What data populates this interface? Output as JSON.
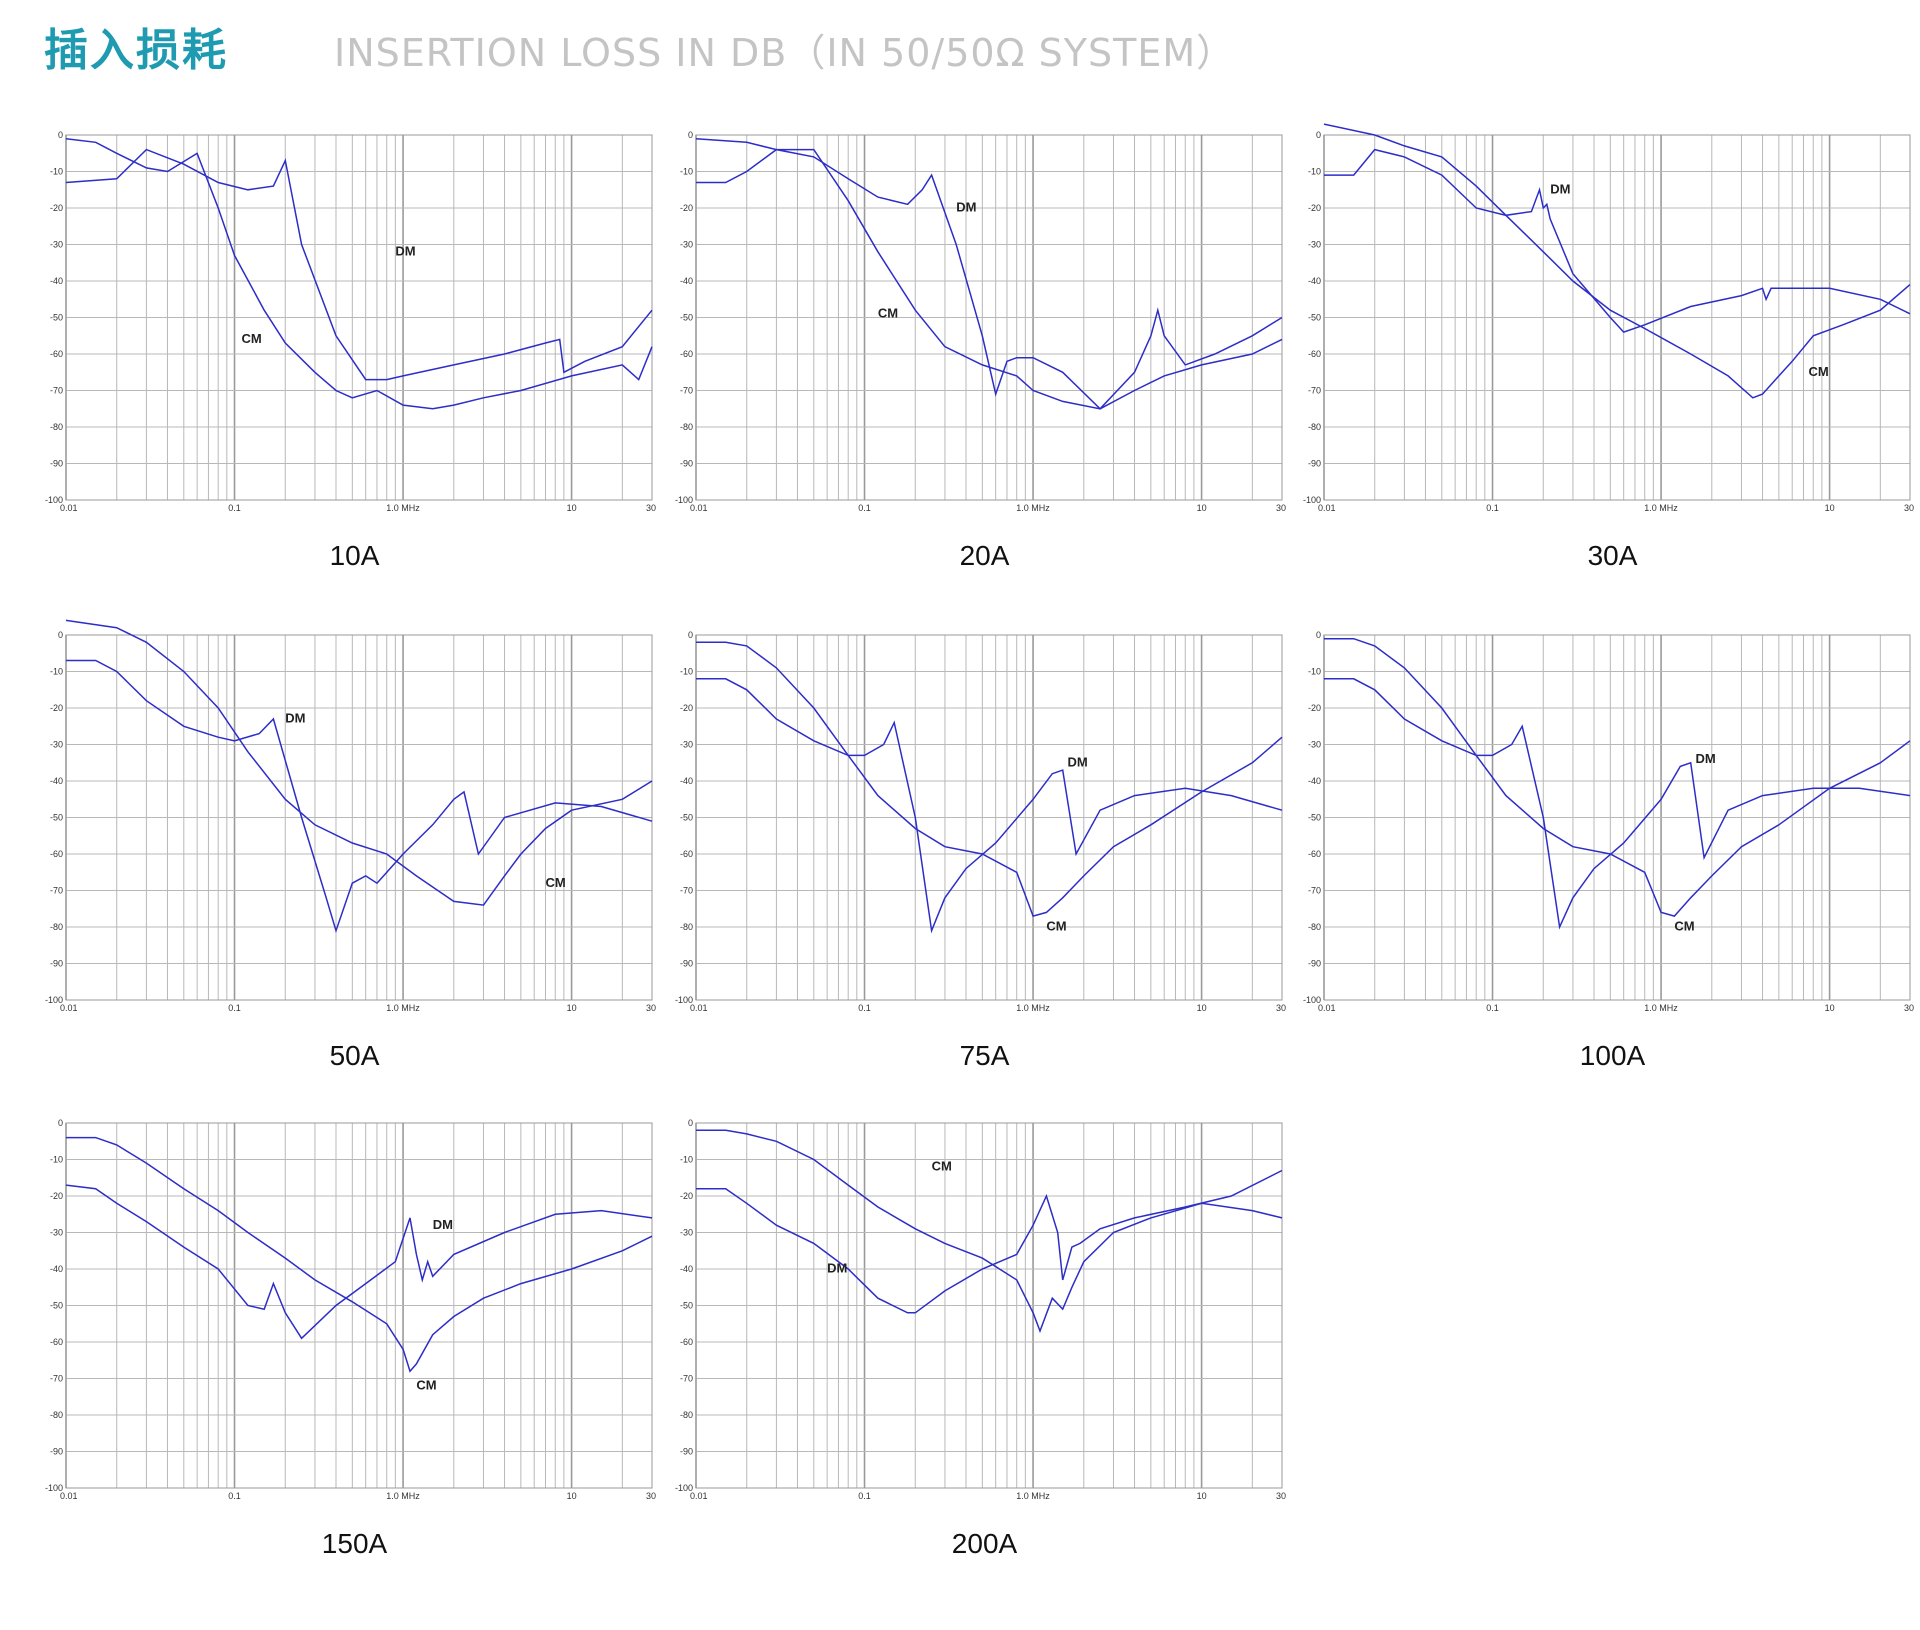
{
  "header": {
    "title_cn": "插入损耗",
    "title_en": "INSERTION LOSS IN DB（IN 50/50Ω SYSTEM）"
  },
  "colors": {
    "title": "#1e9bb0",
    "subtitle": "#c4c4c4",
    "line": "#2d2dc8",
    "grid": "#b8b8b8"
  },
  "chart_data": [
    {
      "type": "line",
      "caption": "10A",
      "xscale": "log",
      "xlim": [
        0.01,
        30
      ],
      "ylim": [
        -100,
        0
      ],
      "x_ticks": [
        "0.01",
        "0.1",
        "1.0 MHz",
        "10",
        "30"
      ],
      "y_ticks": [
        "0",
        "-10",
        "-20",
        "-30",
        "-40",
        "-50",
        "-60",
        "-70",
        "-80",
        "-90",
        "-100"
      ],
      "grid": true,
      "series": [
        {
          "name": "DM",
          "x": [
            0.01,
            0.02,
            0.03,
            0.05,
            0.08,
            0.12,
            0.17,
            0.2,
            0.25,
            0.4,
            0.6,
            0.8,
            1.0,
            2,
            4,
            7,
            8.5,
            9,
            12,
            20,
            30
          ],
          "y": [
            -13,
            -12,
            -4,
            -8,
            -13,
            -15,
            -14,
            -7,
            -30,
            -55,
            -67,
            -67,
            -66,
            -63,
            -60,
            -57,
            -56,
            -65,
            -62,
            -58,
            -48
          ]
        },
        {
          "name": "CM",
          "x": [
            0.01,
            0.015,
            0.02,
            0.03,
            0.04,
            0.06,
            0.08,
            0.1,
            0.15,
            0.2,
            0.3,
            0.4,
            0.5,
            0.7,
            1.0,
            1.5,
            2,
            3,
            5,
            10,
            20,
            25,
            30
          ],
          "y": [
            -1,
            -2,
            -5,
            -9,
            -10,
            -5,
            -20,
            -33,
            -48,
            -57,
            -65,
            -70,
            -72,
            -70,
            -74,
            -75,
            -74,
            -72,
            -70,
            -66,
            -63,
            -67,
            -58
          ]
        }
      ],
      "annotations": [
        {
          "text": "DM",
          "x": 0.9,
          "y": -33
        },
        {
          "text": "CM",
          "x": 0.11,
          "y": -57
        }
      ]
    },
    {
      "type": "line",
      "caption": "20A",
      "xscale": "log",
      "xlim": [
        0.01,
        30
      ],
      "ylim": [
        -100,
        0
      ],
      "x_ticks": [
        "0.01",
        "0.1",
        "1.0 MHz",
        "10",
        "30"
      ],
      "y_ticks": [
        "0",
        "-10",
        "-20",
        "-30",
        "-40",
        "-50",
        "-60",
        "-70",
        "-80",
        "-90",
        "-100"
      ],
      "grid": true,
      "series": [
        {
          "name": "DM",
          "x": [
            0.01,
            0.015,
            0.02,
            0.03,
            0.05,
            0.08,
            0.12,
            0.18,
            0.22,
            0.25,
            0.35,
            0.5,
            0.6,
            0.7,
            0.8,
            1.0,
            1.5,
            2.5,
            4,
            5,
            5.5,
            6,
            8,
            12,
            20,
            30
          ],
          "y": [
            -13,
            -13,
            -10,
            -4,
            -6,
            -12,
            -17,
            -19,
            -15,
            -11,
            -30,
            -55,
            -71,
            -62,
            -61,
            -61,
            -65,
            -75,
            -65,
            -55,
            -48,
            -55,
            -63,
            -60,
            -55,
            -50
          ]
        },
        {
          "name": "CM",
          "x": [
            0.01,
            0.02,
            0.03,
            0.05,
            0.08,
            0.12,
            0.2,
            0.3,
            0.5,
            0.8,
            1.0,
            1.5,
            2.5,
            4,
            6,
            10,
            20,
            30
          ],
          "y": [
            -1,
            -2,
            -4,
            -4,
            -18,
            -32,
            -48,
            -58,
            -63,
            -66,
            -70,
            -73,
            -75,
            -70,
            -66,
            -63,
            -60,
            -56
          ]
        }
      ],
      "annotations": [
        {
          "text": "DM",
          "x": 0.35,
          "y": -21
        },
        {
          "text": "CM",
          "x": 0.12,
          "y": -50
        }
      ]
    },
    {
      "type": "line",
      "caption": "30A",
      "xscale": "log",
      "xlim": [
        0.01,
        30
      ],
      "ylim": [
        -100,
        0
      ],
      "x_ticks": [
        "0.01",
        "0.1",
        "1.0 MHz",
        "10",
        "30"
      ],
      "y_ticks": [
        "0",
        "-10",
        "-20",
        "-30",
        "-40",
        "-50",
        "-60",
        "-70",
        "-80",
        "-90",
        "-100"
      ],
      "grid": true,
      "series": [
        {
          "name": "DM",
          "x": [
            0.01,
            0.015,
            0.02,
            0.03,
            0.05,
            0.08,
            0.12,
            0.17,
            0.19,
            0.2,
            0.21,
            0.22,
            0.3,
            0.5,
            0.6,
            0.8,
            1.5,
            3,
            4,
            4.2,
            4.5,
            6,
            10,
            20,
            30
          ],
          "y": [
            -11,
            -11,
            -4,
            -6,
            -11,
            -20,
            -22,
            -21,
            -15,
            -20,
            -19,
            -23,
            -38,
            -50,
            -54,
            -52,
            -47,
            -44,
            -42,
            -45,
            -42,
            -42,
            -42,
            -45,
            -49
          ]
        },
        {
          "name": "CM",
          "x": [
            0.01,
            0.02,
            0.03,
            0.05,
            0.08,
            0.12,
            0.2,
            0.3,
            0.5,
            0.8,
            1.5,
            2.5,
            3.5,
            4,
            5,
            6,
            8,
            12,
            20,
            30
          ],
          "y": [
            3,
            0,
            -3,
            -6,
            -14,
            -22,
            -32,
            -40,
            -48,
            -53,
            -60,
            -66,
            -72,
            -71,
            -66,
            -62,
            -55,
            -52,
            -48,
            -41
          ]
        }
      ],
      "annotations": [
        {
          "text": "DM",
          "x": 0.22,
          "y": -16
        },
        {
          "text": "CM",
          "x": 7.5,
          "y": -66
        }
      ]
    },
    {
      "type": "line",
      "caption": "50A",
      "xscale": "log",
      "xlim": [
        0.01,
        30
      ],
      "ylim": [
        -100,
        0
      ],
      "x_ticks": [
        "0.01",
        "0.1",
        "1.0 MHz",
        "10",
        "30"
      ],
      "y_ticks": [
        "0",
        "-10",
        "-20",
        "-30",
        "-40",
        "-50",
        "-60",
        "-70",
        "-80",
        "-90",
        "-100"
      ],
      "grid": true,
      "series": [
        {
          "name": "DM",
          "x": [
            0.01,
            0.015,
            0.02,
            0.03,
            0.05,
            0.08,
            0.1,
            0.14,
            0.17,
            0.25,
            0.35,
            0.4,
            0.5,
            0.6,
            0.7,
            1.0,
            1.5,
            2,
            2.3,
            2.8,
            4,
            8,
            15,
            30
          ],
          "y": [
            -7,
            -7,
            -10,
            -18,
            -25,
            -28,
            -29,
            -27,
            -23,
            -50,
            -72,
            -81,
            -68,
            -66,
            -68,
            -60,
            -52,
            -45,
            -43,
            -60,
            -50,
            -46,
            -47,
            -51
          ]
        },
        {
          "name": "CM",
          "x": [
            0.01,
            0.02,
            0.03,
            0.05,
            0.08,
            0.12,
            0.2,
            0.3,
            0.5,
            0.8,
            1.2,
            2,
            3,
            4,
            5,
            7,
            10,
            20,
            30
          ],
          "y": [
            4,
            2,
            -2,
            -10,
            -20,
            -32,
            -45,
            -52,
            -57,
            -60,
            -66,
            -73,
            -74,
            -66,
            -60,
            -53,
            -48,
            -45,
            -40
          ]
        }
      ],
      "annotations": [
        {
          "text": "DM",
          "x": 0.2,
          "y": -24
        },
        {
          "text": "CM",
          "x": 7,
          "y": -69
        }
      ]
    },
    {
      "type": "line",
      "caption": "75A",
      "xscale": "log",
      "xlim": [
        0.01,
        30
      ],
      "ylim": [
        -100,
        0
      ],
      "x_ticks": [
        "0.01",
        "0.1",
        "1.0 MHz",
        "10",
        "30"
      ],
      "y_ticks": [
        "0",
        "-10",
        "-20",
        "-30",
        "-40",
        "-50",
        "-60",
        "-70",
        "-80",
        "-90",
        "-100"
      ],
      "grid": true,
      "series": [
        {
          "name": "DM",
          "x": [
            0.01,
            0.015,
            0.02,
            0.03,
            0.05,
            0.08,
            0.1,
            0.13,
            0.15,
            0.2,
            0.25,
            0.3,
            0.4,
            0.6,
            1.0,
            1.3,
            1.5,
            1.8,
            2.5,
            4,
            8,
            15,
            30
          ],
          "y": [
            -12,
            -12,
            -15,
            -23,
            -29,
            -33,
            -33,
            -30,
            -24,
            -50,
            -81,
            -72,
            -64,
            -57,
            -45,
            -38,
            -37,
            -60,
            -48,
            -44,
            -42,
            -44,
            -48
          ]
        },
        {
          "name": "CM",
          "x": [
            0.01,
            0.015,
            0.02,
            0.03,
            0.05,
            0.08,
            0.12,
            0.2,
            0.3,
            0.5,
            0.8,
            1.0,
            1.2,
            1.5,
            2,
            3,
            5,
            10,
            20,
            30
          ],
          "y": [
            -2,
            -2,
            -3,
            -9,
            -20,
            -33,
            -44,
            -53,
            -58,
            -60,
            -65,
            -77,
            -76,
            -72,
            -66,
            -58,
            -52,
            -43,
            -35,
            -28
          ]
        }
      ],
      "annotations": [
        {
          "text": "DM",
          "x": 1.6,
          "y": -36
        },
        {
          "text": "CM",
          "x": 1.2,
          "y": -81
        }
      ]
    },
    {
      "type": "line",
      "caption": "100A",
      "xscale": "log",
      "xlim": [
        0.01,
        30
      ],
      "ylim": [
        -100,
        0
      ],
      "x_ticks": [
        "0.01",
        "0.1",
        "1.0 MHz",
        "10",
        "30"
      ],
      "y_ticks": [
        "0",
        "-10",
        "-20",
        "-30",
        "-40",
        "-50",
        "-60",
        "-70",
        "-80",
        "-90",
        "-100"
      ],
      "grid": true,
      "series": [
        {
          "name": "DM",
          "x": [
            0.01,
            0.015,
            0.02,
            0.03,
            0.05,
            0.08,
            0.1,
            0.13,
            0.15,
            0.2,
            0.25,
            0.3,
            0.4,
            0.6,
            1.0,
            1.3,
            1.5,
            1.8,
            2.5,
            4,
            8,
            15,
            30
          ],
          "y": [
            -12,
            -12,
            -15,
            -23,
            -29,
            -33,
            -33,
            -30,
            -25,
            -50,
            -80,
            -72,
            -64,
            -57,
            -45,
            -36,
            -35,
            -61,
            -48,
            -44,
            -42,
            -42,
            -44
          ]
        },
        {
          "name": "CM",
          "x": [
            0.01,
            0.015,
            0.02,
            0.03,
            0.05,
            0.08,
            0.12,
            0.2,
            0.3,
            0.5,
            0.8,
            1.0,
            1.2,
            1.5,
            2,
            3,
            5,
            10,
            20,
            30
          ],
          "y": [
            -1,
            -1,
            -3,
            -9,
            -20,
            -33,
            -44,
            -53,
            -58,
            -60,
            -65,
            -76,
            -77,
            -72,
            -66,
            -58,
            -52,
            -42,
            -35,
            -29
          ]
        }
      ],
      "annotations": [
        {
          "text": "DM",
          "x": 1.6,
          "y": -35
        },
        {
          "text": "CM",
          "x": 1.2,
          "y": -81
        }
      ]
    },
    {
      "type": "line",
      "caption": "150A",
      "xscale": "log",
      "xlim": [
        0.01,
        30
      ],
      "ylim": [
        -100,
        0
      ],
      "x_ticks": [
        "0.01",
        "0.1",
        "1.0 MHz",
        "10",
        "30"
      ],
      "y_ticks": [
        "0",
        "-10",
        "-20",
        "-30",
        "-40",
        "-50",
        "-60",
        "-70",
        "-80",
        "-90",
        "-100"
      ],
      "grid": true,
      "series": [
        {
          "name": "DM",
          "x": [
            0.01,
            0.015,
            0.02,
            0.03,
            0.05,
            0.08,
            0.12,
            0.15,
            0.17,
            0.2,
            0.25,
            0.4,
            0.6,
            0.9,
            1.1,
            1.2,
            1.3,
            1.4,
            1.5,
            2,
            4,
            8,
            15,
            30
          ],
          "y": [
            -17,
            -18,
            -22,
            -27,
            -34,
            -40,
            -50,
            -51,
            -44,
            -52,
            -59,
            -50,
            -44,
            -38,
            -26,
            -36,
            -43,
            -38,
            -42,
            -36,
            -30,
            -25,
            -24,
            -26
          ]
        },
        {
          "name": "CM",
          "x": [
            0.01,
            0.015,
            0.02,
            0.03,
            0.05,
            0.08,
            0.12,
            0.2,
            0.3,
            0.5,
            0.8,
            1.0,
            1.1,
            1.2,
            1.5,
            2,
            3,
            5,
            10,
            20,
            30
          ],
          "y": [
            -4,
            -4,
            -6,
            -11,
            -18,
            -24,
            -30,
            -37,
            -43,
            -49,
            -55,
            -62,
            -68,
            -66,
            -58,
            -53,
            -48,
            -44,
            -40,
            -35,
            -31
          ]
        }
      ],
      "annotations": [
        {
          "text": "DM",
          "x": 1.5,
          "y": -29
        },
        {
          "text": "CM",
          "x": 1.2,
          "y": -73
        }
      ]
    },
    {
      "type": "line",
      "caption": "200A",
      "xscale": "log",
      "xlim": [
        0.01,
        30
      ],
      "ylim": [
        -100,
        0
      ],
      "x_ticks": [
        "0.01",
        "0.1",
        "1.0 MHz",
        "10",
        "30"
      ],
      "y_ticks": [
        "0",
        "-10",
        "-20",
        "-30",
        "-40",
        "-50",
        "-60",
        "-70",
        "-80",
        "-90",
        "-100"
      ],
      "grid": true,
      "series": [
        {
          "name": "DM",
          "x": [
            0.01,
            0.015,
            0.02,
            0.03,
            0.05,
            0.08,
            0.12,
            0.18,
            0.2,
            0.3,
            0.5,
            0.8,
            1.0,
            1.2,
            1.4,
            1.5,
            1.7,
            1.9,
            2.5,
            4,
            8,
            15,
            30
          ],
          "y": [
            -18,
            -18,
            -22,
            -28,
            -33,
            -40,
            -48,
            -52,
            -52,
            -46,
            -40,
            -36,
            -28,
            -20,
            -30,
            -43,
            -34,
            -33,
            -29,
            -26,
            -23,
            -20,
            -13
          ]
        },
        {
          "name": "CM",
          "x": [
            0.01,
            0.015,
            0.02,
            0.03,
            0.05,
            0.08,
            0.12,
            0.2,
            0.3,
            0.5,
            0.8,
            1.0,
            1.1,
            1.3,
            1.5,
            1.7,
            2,
            3,
            5,
            10,
            20,
            30
          ],
          "y": [
            -2,
            -2,
            -3,
            -5,
            -10,
            -17,
            -23,
            -29,
            -33,
            -37,
            -43,
            -52,
            -57,
            -48,
            -51,
            -45,
            -38,
            -30,
            -26,
            -22,
            -24,
            -26
          ]
        }
      ],
      "annotations": [
        {
          "text": "DM",
          "x": 0.06,
          "y": -41
        },
        {
          "text": "CM",
          "x": 0.25,
          "y": -13
        }
      ]
    }
  ]
}
